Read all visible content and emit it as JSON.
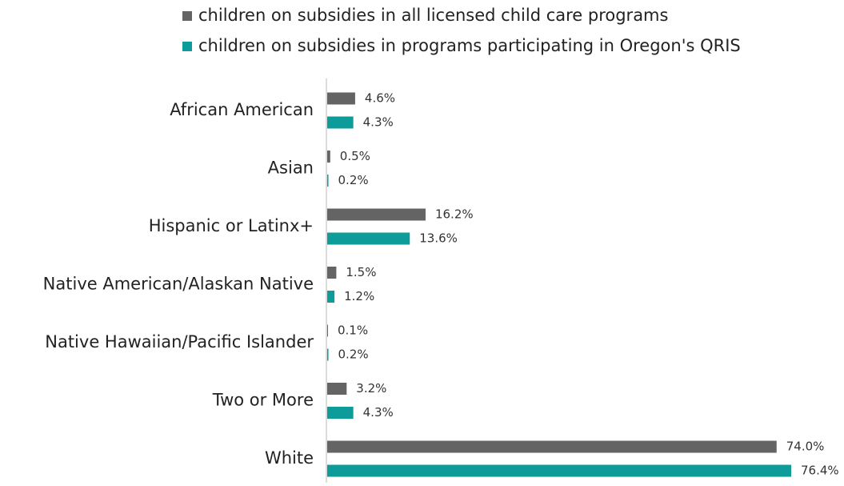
{
  "chart_data": {
    "type": "bar",
    "orientation": "horizontal",
    "categories": [
      "African American",
      "Asian",
      "Hispanic or Latinx+",
      "Native American/Alaskan Native",
      "Native Hawaiian/Pacific Islander",
      "Two or More",
      "White"
    ],
    "series": [
      {
        "name": "children on subsidies in all licensed child care programs",
        "color": "#646464",
        "values": [
          4.6,
          0.5,
          16.2,
          1.5,
          0.1,
          3.2,
          74.0
        ],
        "labels": [
          "4.6%",
          "0.5%",
          "16.2%",
          "1.5%",
          "0.1%",
          "3.2%",
          "74.0%"
        ]
      },
      {
        "name": "children on subsidies in programs participating in Oregon's QRIS",
        "color": "#0e9c9b",
        "values": [
          4.3,
          0.2,
          13.6,
          1.2,
          0.2,
          4.3,
          76.4
        ],
        "labels": [
          "4.3%",
          "0.2%",
          "13.6%",
          "1.2%",
          "0.2%",
          "4.3%",
          "76.4%"
        ]
      }
    ],
    "xlim": [
      0,
      76.4
    ],
    "grid": false,
    "axis_line_color": "#b8b8b8",
    "legend_placement": "top-center",
    "title": "",
    "xlabel": "",
    "ylabel": ""
  }
}
